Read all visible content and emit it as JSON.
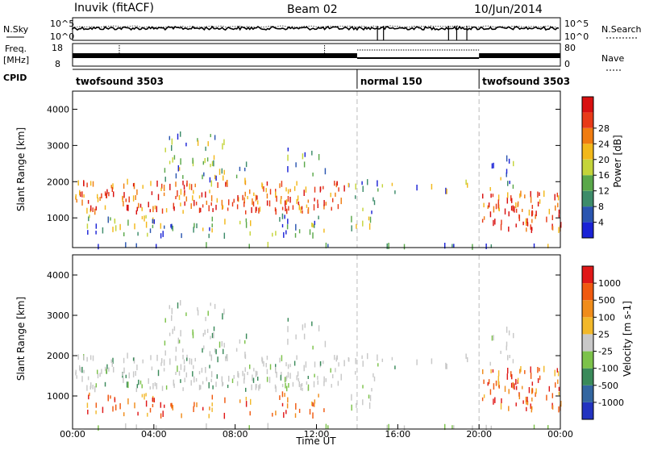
{
  "header": {
    "station": "Inuvik (fitACF)",
    "beam": "Beam 02",
    "date": "10/Jun/2014"
  },
  "top_panels": {
    "nsky_label": "N.Sky",
    "nsearch_label": "N.Search",
    "noise_ticks": [
      "10^5",
      "10^0"
    ],
    "freq_label": "Freq.",
    "freq_unit": "[MHz]",
    "freq_ticks": [
      "18",
      "8"
    ],
    "nave_label": "Nave",
    "nave_ticks": [
      "80",
      "0"
    ],
    "cpid_label": "CPID",
    "cpid_segments": [
      {
        "name": "twofsound 3503",
        "start_hour": 0,
        "end_hour": 14.0
      },
      {
        "name": "normal 150",
        "start_hour": 14.0,
        "end_hour": 20.0
      },
      {
        "name": "twofsound 3503",
        "start_hour": 20.0,
        "end_hour": 24
      }
    ]
  },
  "chart_data": [
    {
      "type": "heatmap",
      "title": "",
      "xlabel": "Time UT",
      "ylabel": "Slant Range [km]",
      "xlim_hours": [
        0,
        24
      ],
      "ylim_km": [
        180,
        4500
      ],
      "x_ticks": [
        "00:00",
        "04:00",
        "08:00",
        "12:00",
        "16:00",
        "20:00",
        "00:00"
      ],
      "y_ticks": [
        1000,
        2000,
        3000,
        4000
      ],
      "colorbar": {
        "label": "Power [dB]",
        "ticks": [
          4,
          8,
          12,
          16,
          20,
          24,
          28
        ],
        "colors": [
          "#1a22d6",
          "#2a55b0",
          "#3d8c6a",
          "#5aa84a",
          "#c4d43a",
          "#f2b81a",
          "#f07c10",
          "#e83a18",
          "#d81010"
        ]
      }
    },
    {
      "type": "heatmap",
      "title": "",
      "xlabel": "Time UT",
      "ylabel": "Slant Range [km]",
      "xlim_hours": [
        0,
        24
      ],
      "ylim_km": [
        180,
        4500
      ],
      "x_ticks": [
        "00:00",
        "04:00",
        "08:00",
        "12:00",
        "16:00",
        "20:00",
        "00:00"
      ],
      "y_ticks": [
        1000,
        2000,
        3000,
        4000
      ],
      "colorbar": {
        "label": "Velocity [m s-1]",
        "ticks": [
          1000,
          500,
          100,
          25,
          -25,
          -100,
          -500,
          -1000
        ],
        "colors": [
          "#2233c0",
          "#3366a0",
          "#3a8a5a",
          "#7cc24a",
          "#c8c8c8",
          "#f2b82a",
          "#f08c1a",
          "#f05a10",
          "#e01818"
        ]
      }
    }
  ],
  "x_axis_title": "Time UT"
}
